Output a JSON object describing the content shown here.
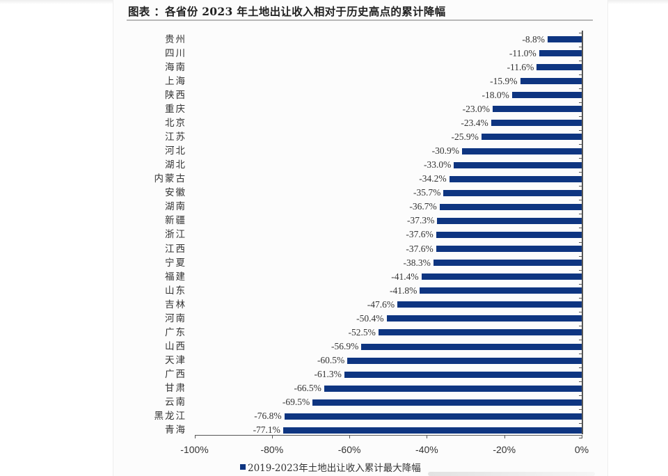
{
  "title": "图表  ：各省份 2023 年土地出让收入相对于历史高点的累计降幅",
  "legend": {
    "label": "2019-2023年土地出让收入累计最大降幅",
    "color": "#0e3581"
  },
  "x_ticks": [
    "-100%",
    "-80%",
    "-60%",
    "-40%",
    "-20%",
    "0%"
  ],
  "value_labels": [
    "-8.8%",
    "-11.0%",
    "-11.6%",
    "-15.9%",
    "-18.0%",
    "-23.0%",
    "-23.4%",
    "-25.9%",
    "-30.9%",
    "-33.0%",
    "-34.2%",
    "-35.7%",
    "-36.7%",
    "-37.3%",
    "-37.6%",
    "-37.6%",
    "-38.3%",
    "-41.4%",
    "-41.8%",
    "-47.6%",
    "-50.4%",
    "-52.5%",
    "-56.9%",
    "-60.5%",
    "-61.3%",
    "-66.5%",
    "-69.5%",
    "-76.8%",
    "-77.1%"
  ],
  "chart_data": {
    "type": "bar",
    "orientation": "horizontal",
    "title": "各省份 2023 年土地出让收入相对于历史高点的累计降幅",
    "xlabel": "",
    "ylabel": "",
    "xlim": [
      -100,
      0
    ],
    "x_ticks": [
      -100,
      -80,
      -60,
      -40,
      -20,
      0
    ],
    "x_tick_format": "percent",
    "grid": false,
    "legend_position": "bottom",
    "categories": [
      "贵州",
      "四川",
      "海南",
      "上海",
      "陕西",
      "重庆",
      "北京",
      "江苏",
      "河北",
      "湖北",
      "内蒙古",
      "安徽",
      "湖南",
      "新疆",
      "浙江",
      "江西",
      "宁夏",
      "福建",
      "山东",
      "吉林",
      "河南",
      "广东",
      "山西",
      "天津",
      "广西",
      "甘肃",
      "云南",
      "黑龙江",
      "青海"
    ],
    "series": [
      {
        "name": "2019-2023年土地出让收入累计最大降幅",
        "color": "#0e3581",
        "values": [
          -8.8,
          -11.0,
          -11.6,
          -15.9,
          -18.0,
          -23.0,
          -23.4,
          -25.9,
          -30.9,
          -33.0,
          -34.2,
          -35.7,
          -36.7,
          -37.3,
          -37.6,
          -37.6,
          -38.3,
          -41.4,
          -41.8,
          -47.6,
          -50.4,
          -52.5,
          -56.9,
          -60.5,
          -61.3,
          -66.5,
          -69.5,
          -76.8,
          -77.1
        ]
      }
    ]
  }
}
